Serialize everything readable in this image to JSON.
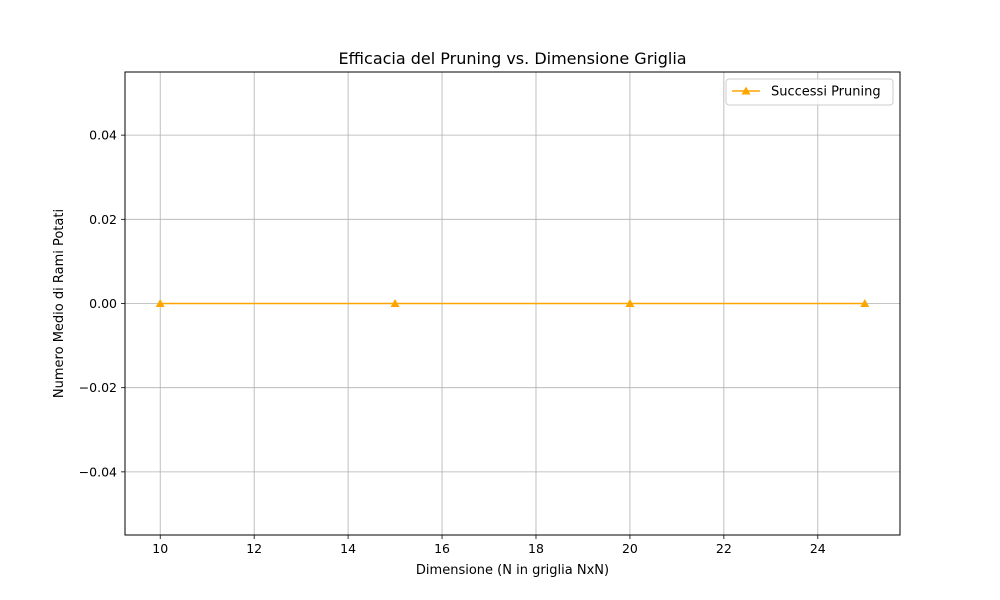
{
  "chart_data": {
    "type": "line",
    "title": "Efficacia del Pruning vs. Dimensione Griglia",
    "xlabel": "Dimensione (N in griglia NxN)",
    "ylabel": "Numero Medio di Rami Potati",
    "xlim": [
      9.25,
      25.75
    ],
    "ylim": [
      -0.055,
      0.055
    ],
    "xticks": [
      10,
      12,
      14,
      16,
      18,
      20,
      22,
      24
    ],
    "xtick_labels": [
      "10",
      "12",
      "14",
      "16",
      "18",
      "20",
      "22",
      "24"
    ],
    "yticks": [
      -0.04,
      -0.02,
      0.0,
      0.02,
      0.04
    ],
    "ytick_labels": [
      "−0.04",
      "−0.02",
      "0.00",
      "0.02",
      "0.04"
    ],
    "grid": true,
    "legend_position": "upper right",
    "series": [
      {
        "name": "Successi Pruning",
        "color": "#FFA500",
        "marker": "triangle-up",
        "x": [
          10,
          15,
          20,
          25
        ],
        "y": [
          0,
          0,
          0,
          0
        ]
      }
    ]
  }
}
